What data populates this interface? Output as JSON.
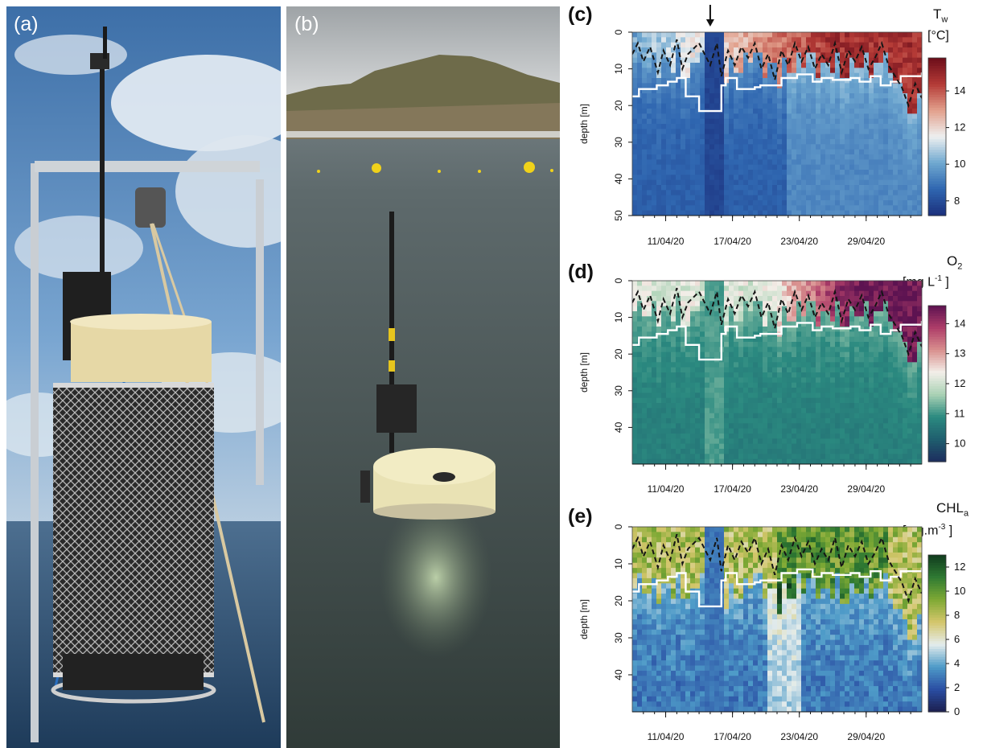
{
  "panels": {
    "a": {
      "label": "(a)"
    },
    "b": {
      "label": "(b)"
    },
    "c": {
      "label": "(c)"
    },
    "d": {
      "label": "(d)"
    },
    "e": {
      "label": "(e)"
    }
  },
  "chart_data": [
    {
      "type": "heatmap",
      "panel": "(c)",
      "title": "T",
      "title_sub": "w",
      "unit": "[°C]",
      "ylabel": "depth [m]",
      "ylim": [
        50,
        0
      ],
      "y_ticks": [
        "0",
        "10",
        "20",
        "30",
        "40",
        "50"
      ],
      "x_ticks": [
        "11/04/20",
        "17/04/20",
        "23/04/20",
        "29/04/20"
      ],
      "colorbar_ticks": [
        "8",
        "10",
        "12",
        "14"
      ],
      "colorbar_range": [
        7.2,
        15.8
      ],
      "colorbar_colors": [
        "#1b2f7c",
        "#2f66b0",
        "#6fa8d0",
        "#eef0f0",
        "#e2a08c",
        "#b43a36",
        "#6b0d1a"
      ],
      "annotation": "arrow marking 15/04/20",
      "lines": [
        {
          "name": "white solid",
          "color": "#ffffff",
          "dash": "solid"
        },
        {
          "name": "black dashed",
          "color": "#111111",
          "dash": "dashed"
        }
      ]
    },
    {
      "type": "heatmap",
      "panel": "(d)",
      "title": "O",
      "title_sub": "2",
      "unit": "[mg L",
      "unit_sup": "-1",
      "unit_close": " ]",
      "ylabel": "depth [m]",
      "ylim": [
        50,
        0
      ],
      "y_ticks": [
        "0",
        "10",
        "20",
        "30",
        "40"
      ],
      "x_ticks": [
        "11/04/20",
        "17/04/20",
        "23/04/20",
        "29/04/20"
      ],
      "colorbar_ticks": [
        "10",
        "11",
        "12",
        "13",
        "14"
      ],
      "colorbar_range": [
        9.4,
        14.6
      ],
      "colorbar_colors": [
        "#1d2d5e",
        "#1f5e6e",
        "#2b8a80",
        "#a9d1b4",
        "#f3efe9",
        "#d9908e",
        "#ae3d69",
        "#5d1351"
      ]
    },
    {
      "type": "heatmap",
      "panel": "(e)",
      "title": "CHL",
      "title_sub": "a",
      "unit": "[mg.m",
      "unit_sup": "-3",
      "unit_close": " ]",
      "ylabel": "depth [m]",
      "ylim": [
        50,
        0
      ],
      "y_ticks": [
        "0",
        "10",
        "20",
        "30",
        "40"
      ],
      "x_ticks": [
        "11/04/20",
        "17/04/20",
        "23/04/20",
        "29/04/20"
      ],
      "colorbar_ticks": [
        "0",
        "2",
        "4",
        "6",
        "8",
        "10",
        "12"
      ],
      "colorbar_range": [
        0,
        13
      ],
      "colorbar_colors": [
        "#1c1f4f",
        "#2a4ea3",
        "#4e9bc8",
        "#e4ecec",
        "#d4c66b",
        "#7ea934",
        "#2f7a33",
        "#103b1e"
      ]
    }
  ],
  "series": {
    "white_line": {
      "x": [
        8.0,
        8.6,
        9.6,
        10.2,
        11.2,
        12.0,
        12.8,
        13.2,
        14.0,
        15.0,
        16.0,
        16.4,
        17.4,
        18.0,
        19.0,
        19.5,
        20.6,
        21.4,
        22.8,
        24.2,
        25.0,
        26.0,
        27.0,
        27.6,
        28.4,
        29.4,
        30.3,
        31.2,
        32.1,
        33.0,
        34.0
      ],
      "y": [
        17.5,
        15.5,
        15.5,
        14.5,
        13.5,
        12.5,
        17.5,
        17.5,
        21.5,
        21.5,
        14.5,
        12.5,
        15.5,
        15.5,
        15.0,
        14.5,
        14.5,
        12.5,
        11.5,
        13.5,
        12.5,
        13.0,
        13.0,
        12.5,
        13.5,
        12.0,
        14.5,
        13.5,
        12.0,
        12.0,
        11.0
      ]
    },
    "black_dashed": {
      "x": [
        8.0,
        8.5,
        9.0,
        9.6,
        10.3,
        10.8,
        11.4,
        12.0,
        12.5,
        13.0,
        14.0,
        15.0,
        15.6,
        16.0,
        16.6,
        17.2,
        17.8,
        18.4,
        19.0,
        19.6,
        20.2,
        20.8,
        21.4,
        22.0,
        22.6,
        23.2,
        23.8,
        24.4,
        25.0,
        25.6,
        26.2,
        26.8,
        27.4,
        28.0,
        28.6,
        29.2,
        29.8,
        30.4,
        31.0,
        31.6,
        32.2,
        32.8,
        33.4,
        34.0
      ],
      "y": [
        6,
        3,
        8,
        4,
        11,
        5,
        9,
        2,
        10,
        6,
        3,
        9,
        3,
        12,
        5,
        9,
        4,
        7,
        3,
        10,
        6,
        13,
        5,
        9,
        3,
        8,
        4,
        10,
        6,
        9,
        3,
        11,
        5,
        8,
        4,
        10,
        7,
        3,
        9,
        12,
        15,
        20,
        14,
        18
      ]
    },
    "x_tick_positions": [
      11,
      17,
      23,
      29
    ],
    "x_range": [
      8,
      34
    ],
    "arrow_x": 15
  }
}
